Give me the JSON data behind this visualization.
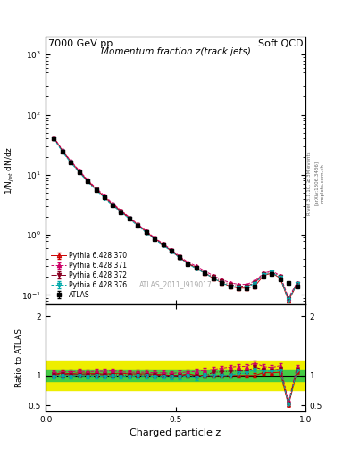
{
  "title_left": "7000 GeV pp",
  "title_right": "Soft QCD",
  "plot_title": "Momentum fraction z(track jets)",
  "xlabel": "Charged particle z",
  "ylabel_main": "1/N$_{jet}$ dN/dz",
  "ylabel_ratio": "Ratio to ATLAS",
  "watermark": "ATLAS_2011_I919017",
  "rivet_label": "Rivet 3.1.10, ≥ 3M events",
  "arxiv_label": "[arXiv:1306.3436]",
  "mcplots_label": "mcplots.cern.ch",
  "xlim": [
    0.0,
    1.0
  ],
  "ylim_main": [
    0.07,
    2000
  ],
  "ylim_ratio": [
    0.4,
    2.2
  ],
  "green_band": [
    0.9,
    1.1
  ],
  "yellow_band": [
    0.75,
    1.25
  ],
  "z_atlas": [
    0.032,
    0.065,
    0.097,
    0.129,
    0.161,
    0.194,
    0.226,
    0.258,
    0.29,
    0.323,
    0.355,
    0.387,
    0.419,
    0.452,
    0.484,
    0.516,
    0.548,
    0.581,
    0.613,
    0.645,
    0.677,
    0.71,
    0.742,
    0.774,
    0.806,
    0.839,
    0.871,
    0.903,
    0.935,
    0.968
  ],
  "y_atlas": [
    40.0,
    24.0,
    16.0,
    11.0,
    7.8,
    5.6,
    4.2,
    3.1,
    2.4,
    1.85,
    1.42,
    1.1,
    0.86,
    0.68,
    0.54,
    0.42,
    0.33,
    0.28,
    0.23,
    0.19,
    0.16,
    0.14,
    0.13,
    0.13,
    0.14,
    0.2,
    0.22,
    0.18,
    0.16,
    0.14
  ],
  "yerr_atlas": [
    1.5,
    0.9,
    0.6,
    0.4,
    0.3,
    0.22,
    0.16,
    0.12,
    0.09,
    0.07,
    0.055,
    0.042,
    0.033,
    0.026,
    0.021,
    0.016,
    0.013,
    0.011,
    0.009,
    0.007,
    0.006,
    0.005,
    0.005,
    0.005,
    0.005,
    0.007,
    0.008,
    0.007,
    0.006,
    0.005
  ],
  "y_py370": [
    41.0,
    25.0,
    16.5,
    11.5,
    8.1,
    5.8,
    4.3,
    3.2,
    2.5,
    1.9,
    1.46,
    1.13,
    0.88,
    0.69,
    0.54,
    0.42,
    0.34,
    0.28,
    0.23,
    0.19,
    0.16,
    0.14,
    0.13,
    0.13,
    0.14,
    0.21,
    0.23,
    0.19,
    0.08,
    0.15
  ],
  "y_py371": [
    42.0,
    25.5,
    17.0,
    11.8,
    8.3,
    6.0,
    4.5,
    3.35,
    2.55,
    1.95,
    1.5,
    1.16,
    0.9,
    0.71,
    0.56,
    0.44,
    0.35,
    0.3,
    0.25,
    0.21,
    0.18,
    0.16,
    0.15,
    0.15,
    0.17,
    0.23,
    0.25,
    0.21,
    0.09,
    0.16
  ],
  "y_py372": [
    40.5,
    24.5,
    16.2,
    11.2,
    7.9,
    5.7,
    4.25,
    3.15,
    2.42,
    1.87,
    1.44,
    1.11,
    0.87,
    0.68,
    0.54,
    0.42,
    0.33,
    0.28,
    0.23,
    0.2,
    0.17,
    0.15,
    0.14,
    0.14,
    0.16,
    0.22,
    0.24,
    0.2,
    0.085,
    0.155
  ],
  "y_py376": [
    39.5,
    23.8,
    15.8,
    11.0,
    7.7,
    5.55,
    4.15,
    3.08,
    2.37,
    1.83,
    1.41,
    1.09,
    0.85,
    0.67,
    0.53,
    0.41,
    0.33,
    0.27,
    0.23,
    0.19,
    0.16,
    0.14,
    0.135,
    0.135,
    0.155,
    0.215,
    0.235,
    0.195,
    0.083,
    0.152
  ],
  "color_atlas": "#000000",
  "color_py370": "#cc0000",
  "color_py371": "#cc0066",
  "color_py372": "#880022",
  "color_py376": "#00aaaa",
  "green_color": "#44cc44",
  "yellow_color": "#eeee00"
}
